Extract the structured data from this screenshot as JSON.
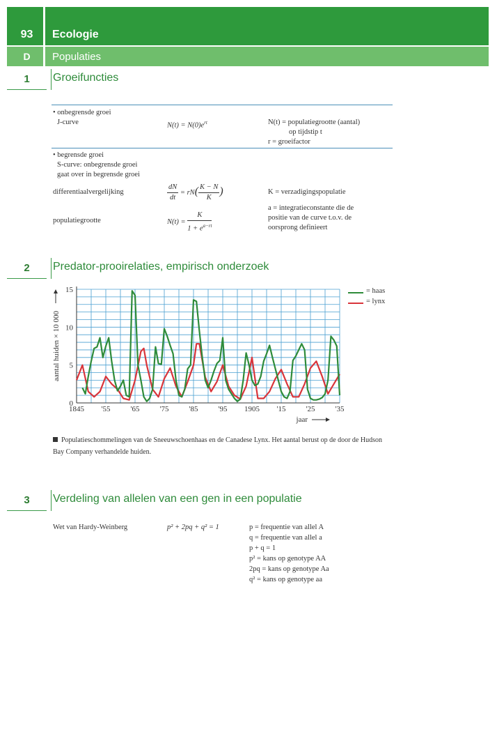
{
  "header": {
    "page_number": "93",
    "title": "Ecologie",
    "sub_letter": "D",
    "sub_title": "Populaties"
  },
  "sec1": {
    "number": "1",
    "title": "Groeifuncties",
    "unbounded_label": "• onbegrensde groei",
    "jcurve_label": "J-curve",
    "jcurve_formula": "N(t) = N(0)e^rt",
    "nt_desc": "N(t) = populatiegrootte (aantal)",
    "nt_desc2": "op tijdstip t",
    "r_desc": "r = groeifactor",
    "bounded_label": "• begrensde groei",
    "scurve_label": "S-curve: onbegrensde groei",
    "scurve_label2": "gaat over in begrensde groei",
    "diff_label": "differentiaalvergelijking",
    "diff_formula": "dN/dt = rN((K − N)/K)",
    "k_desc": "K = verzadigingspopulatie",
    "pop_label": "populatiegrootte",
    "pop_formula": "N(t) = K / (1 + e^(a−rt))",
    "a_desc": "a = integratieconstante die de",
    "a_desc2": "positie van de curve t.o.v. de",
    "a_desc3": "oorsprong definieert"
  },
  "sec2": {
    "number": "2",
    "title": "Predator-prooirelaties, empirisch onderzoek",
    "caption": "Populatieschommelingen van de Sneeuwschoenhaas en de Canadese Lynx. Het aantal berust op de door de Hudson Bay Company verhandelde huiden."
  },
  "sec3": {
    "number": "3",
    "title": "Verdeling van allelen van een gen in een populatie",
    "law": "Wet van Hardy-Weinberg",
    "formula": "p² + 2pq + q² = 1",
    "lines": [
      "p = frequentie van allel A",
      "q = frequentie van allel a",
      "p + q = 1",
      "p² = kans op genotype AA",
      "2pq = kans op genotype Aa",
      "q² = kans op genotype aa"
    ]
  },
  "chart_data": {
    "type": "line",
    "xlabel": "jaar",
    "ylabel": "aantal huiden × 10 000",
    "xlim": [
      1845,
      1935
    ],
    "ylim": [
      0,
      15
    ],
    "x_tick_labels": [
      "1845",
      "'55",
      "'65",
      "'75",
      "'85",
      "'95",
      "1905",
      "'15",
      "'25",
      "'35"
    ],
    "y_tick_labels": [
      "0",
      "5",
      "10",
      "15"
    ],
    "grid": true,
    "legend_position": "top-right",
    "colors": {
      "haas": "#2e8b3a",
      "lynx": "#d9343a"
    },
    "series": [
      {
        "name": "haas",
        "x": [
          1847,
          1848,
          1849,
          1850,
          1851,
          1852,
          1853,
          1854,
          1855,
          1856,
          1857,
          1858,
          1859,
          1860,
          1861,
          1862,
          1863,
          1864,
          1865,
          1866,
          1867,
          1868,
          1869,
          1870,
          1871,
          1872,
          1873,
          1874,
          1875,
          1876,
          1877,
          1878,
          1879,
          1880,
          1881,
          1882,
          1883,
          1884,
          1885,
          1886,
          1887,
          1888,
          1889,
          1890,
          1891,
          1892,
          1893,
          1894,
          1895,
          1896,
          1897,
          1898,
          1899,
          1900,
          1901,
          1902,
          1903,
          1904,
          1905,
          1906,
          1907,
          1908,
          1909,
          1910,
          1911,
          1912,
          1913,
          1914,
          1915,
          1916,
          1917,
          1918,
          1919,
          1920,
          1921,
          1922,
          1923,
          1924,
          1925,
          1926,
          1927,
          1928,
          1929,
          1930,
          1931,
          1932,
          1933,
          1934,
          1935
        ],
        "values": [
          2,
          1.2,
          3.5,
          5.5,
          7.2,
          7.4,
          8.6,
          6,
          7.5,
          8.6,
          5.5,
          3,
          1.6,
          2.2,
          3,
          1,
          0.8,
          14.8,
          14.2,
          5,
          3,
          0.8,
          0.2,
          0.6,
          1.8,
          7.4,
          5.2,
          5.1,
          9.8,
          8.8,
          7.6,
          6.5,
          3,
          1,
          0.8,
          1.8,
          4.5,
          5,
          13.6,
          13.4,
          9.5,
          6,
          3,
          2,
          3,
          4.2,
          5.2,
          5.6,
          8.6,
          3,
          1.8,
          1.2,
          0.6,
          0.2,
          0.5,
          3,
          6.6,
          5,
          3,
          2.3,
          2.5,
          3.5,
          5.5,
          6.5,
          7.6,
          6,
          4.5,
          3,
          1.5,
          0.8,
          0.6,
          1.5,
          5.6,
          6.2,
          7,
          7.8,
          7,
          1.8,
          0.6,
          0.4,
          0.4,
          0.5,
          0.7,
          1.2,
          3,
          8.8,
          8.3,
          7.5,
          1
        ]
      },
      {
        "name": "lynx",
        "x": [
          1845,
          1847,
          1849,
          1851,
          1853,
          1855,
          1857,
          1859,
          1861,
          1863,
          1865,
          1867,
          1868,
          1869,
          1871,
          1873,
          1875,
          1877,
          1879,
          1881,
          1883,
          1885,
          1886,
          1887,
          1889,
          1891,
          1893,
          1895,
          1897,
          1899,
          1901,
          1903,
          1905,
          1907,
          1909,
          1911,
          1913,
          1915,
          1917,
          1919,
          1921,
          1923,
          1925,
          1927,
          1929,
          1931,
          1933,
          1935
        ],
        "values": [
          3,
          5,
          1.5,
          0.8,
          1.5,
          3.5,
          2.5,
          1.8,
          0.6,
          0.4,
          3,
          6.8,
          7.2,
          5,
          1.8,
          0.8,
          3.2,
          4.6,
          2.2,
          0.8,
          2.8,
          5,
          7.8,
          7.8,
          3.4,
          1.5,
          2.8,
          5,
          2.2,
          1,
          0.5,
          2.2,
          6,
          0.6,
          0.6,
          1.5,
          3.2,
          4.4,
          2.5,
          0.8,
          0.8,
          2.5,
          4.6,
          5.5,
          3.5,
          1.2,
          2.5,
          3.8
        ]
      }
    ]
  }
}
